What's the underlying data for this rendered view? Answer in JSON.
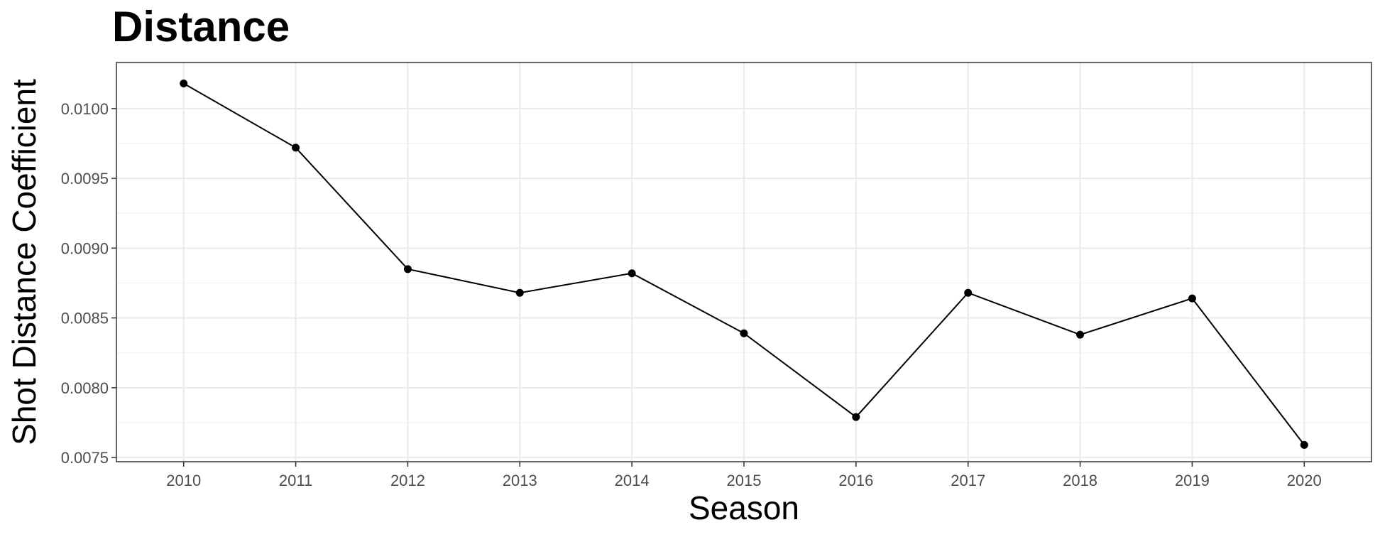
{
  "chart_data": {
    "type": "line",
    "title": "Distance",
    "xlabel": "Season",
    "ylabel": "Shot Distance Coefficient",
    "x": [
      2010,
      2011,
      2012,
      2013,
      2014,
      2015,
      2016,
      2017,
      2018,
      2019,
      2020
    ],
    "series": [
      {
        "values": [
          0.01018,
          0.00972,
          0.00885,
          0.00868,
          0.00882,
          0.00839,
          0.00779,
          0.00868,
          0.00838,
          0.00864,
          0.00759
        ]
      }
    ],
    "x_ticks": [
      "2010",
      "2011",
      "2012",
      "2013",
      "2014",
      "2015",
      "2016",
      "2017",
      "2018",
      "2019",
      "2020"
    ],
    "y_ticks": [
      {
        "value": 0.0075,
        "label": "0.0075"
      },
      {
        "value": 0.008,
        "label": "0.0080"
      },
      {
        "value": 0.0085,
        "label": "0.0085"
      },
      {
        "value": 0.009,
        "label": "0.0090"
      },
      {
        "value": 0.0095,
        "label": "0.0095"
      },
      {
        "value": 0.01,
        "label": "0.0100"
      }
    ],
    "xlim": [
      2009.4,
      2020.6
    ],
    "ylim": [
      0.00747,
      0.01033
    ],
    "grid": true,
    "legend": "none",
    "colors": {
      "line": "#000000",
      "point": "#000000",
      "grid_major": "#ebebeb",
      "grid_minor": "#f2f2f2",
      "panel_border": "#333333",
      "tick_label": "#4d4d4d"
    }
  }
}
